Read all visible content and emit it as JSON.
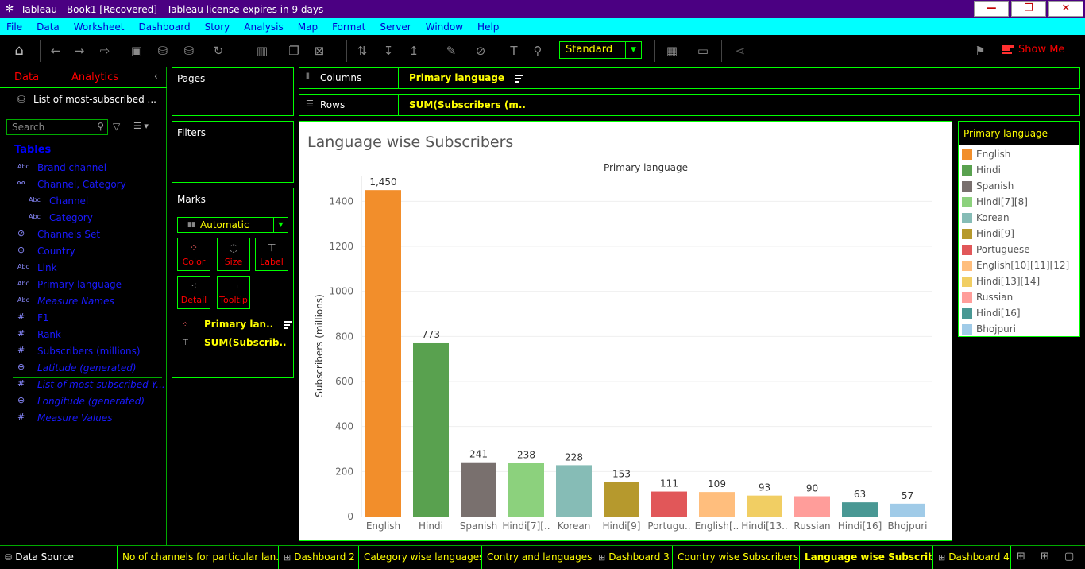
{
  "window": {
    "title": "Tableau - Book1 [Recovered] - Tableau license expires in 9 days",
    "minimize": "—",
    "maximize": "❐",
    "close": "✕"
  },
  "menu": [
    "File",
    "Data",
    "Worksheet",
    "Dashboard",
    "Story",
    "Analysis",
    "Map",
    "Format",
    "Server",
    "Window",
    "Help"
  ],
  "toolbar": {
    "fit": "Standard",
    "show_me": "Show Me"
  },
  "datapane": {
    "tab_data": "Data",
    "tab_analytics": "Analytics",
    "datasource": "List of most-subscribed ...",
    "search_placeholder": "Search",
    "tables_heading": "Tables",
    "fields": [
      {
        "icon": "Abc",
        "label": "Brand channel",
        "italic": false,
        "sub": false
      },
      {
        "icon": "⚯",
        "label": "Channel, Category",
        "italic": false,
        "sub": false
      },
      {
        "icon": "Abc",
        "label": "Channel",
        "italic": false,
        "sub": true
      },
      {
        "icon": "Abc",
        "label": "Category",
        "italic": false,
        "sub": true
      },
      {
        "icon": "⊘",
        "label": "Channels Set",
        "italic": false,
        "sub": false
      },
      {
        "icon": "⊕",
        "label": "Country",
        "italic": false,
        "sub": false
      },
      {
        "icon": "Abc",
        "label": "Link",
        "italic": false,
        "sub": false
      },
      {
        "icon": "Abc",
        "label": "Primary language",
        "italic": false,
        "sub": false
      },
      {
        "icon": "Abc",
        "label": "Measure Names",
        "italic": true,
        "sub": false
      },
      {
        "icon": "#",
        "label": "F1",
        "italic": false,
        "sub": false
      },
      {
        "icon": "#",
        "label": "Rank",
        "italic": false,
        "sub": false
      },
      {
        "icon": "#",
        "label": "Subscribers (millions)",
        "italic": false,
        "sub": false
      },
      {
        "icon": "⊕",
        "label": "Latitude (generated)",
        "italic": true,
        "sub": false
      },
      {
        "icon": "#",
        "label": "List of most-subscribed Y...",
        "italic": true,
        "sub": false
      },
      {
        "icon": "⊕",
        "label": "Longitude (generated)",
        "italic": true,
        "sub": false
      },
      {
        "icon": "#",
        "label": "Measure Values",
        "italic": true,
        "sub": false
      }
    ]
  },
  "cards": {
    "pages": "Pages",
    "filters": "Filters",
    "marks": "Marks"
  },
  "marks": {
    "type": "Automatic",
    "buttons": [
      "Color",
      "Size",
      "Label",
      "Detail",
      "Tooltip"
    ],
    "pills": [
      "Primary lan..",
      "SUM(Subscrib.."
    ]
  },
  "shelves": {
    "columns_label": "Columns",
    "columns_pill": "Primary language",
    "rows_label": "Rows",
    "rows_pill": "SUM(Subscribers (m.."
  },
  "legend": {
    "title": "Primary language"
  },
  "chart_data": {
    "type": "bar",
    "title": "Language wise Subscribers",
    "xlabel": "Primary language",
    "ylabel": "Subscribers (millions)",
    "ylim": [
      0,
      1500
    ],
    "yticks": [
      0,
      200,
      400,
      600,
      800,
      1000,
      1200,
      1400
    ],
    "grid": true,
    "categories": [
      "English",
      "Hindi",
      "Spanish",
      "Hindi[7][8]",
      "Korean",
      "Hindi[9]",
      "Portuguese",
      "English[10][11][12]",
      "Hindi[13][14]",
      "Russian",
      "Hindi[16]",
      "Bhojpuri"
    ],
    "tick_labels": [
      "English",
      "Hindi",
      "Spanish",
      "Hindi[7][..",
      "Korean",
      "Hindi[9]",
      "Portugu..",
      "English[..",
      "Hindi[13..",
      "Russian",
      "Hindi[16]",
      "Bhojpuri"
    ],
    "values": [
      1450,
      773,
      241,
      238,
      228,
      153,
      111,
      109,
      93,
      90,
      63,
      57
    ],
    "data_labels": [
      "1,450",
      "773",
      "241",
      "238",
      "228",
      "153",
      "111",
      "109",
      "93",
      "90",
      "63",
      "57"
    ],
    "colors": [
      "#f28e2b",
      "#59a14f",
      "#79706e",
      "#8cd17d",
      "#86bcb6",
      "#b6992d",
      "#e15759",
      "#ffbe7d",
      "#f1ce63",
      "#ff9d9a",
      "#499894",
      "#a0cbe8"
    ]
  },
  "bottom_tabs": [
    {
      "label": "Data Source",
      "icon": "⛁"
    },
    {
      "label": "No of channels for particular lan...",
      "icon": ""
    },
    {
      "label": "Dashboard 2",
      "icon": "⊞"
    },
    {
      "label": "Category wise languages",
      "icon": ""
    },
    {
      "label": "Contry and languages",
      "icon": ""
    },
    {
      "label": "Dashboard 3",
      "icon": "⊞"
    },
    {
      "label": "Country wise Subscribers",
      "icon": ""
    },
    {
      "label": "Language wise Subscribers",
      "icon": ""
    },
    {
      "label": "Dashboard 4",
      "icon": "⊞"
    }
  ]
}
